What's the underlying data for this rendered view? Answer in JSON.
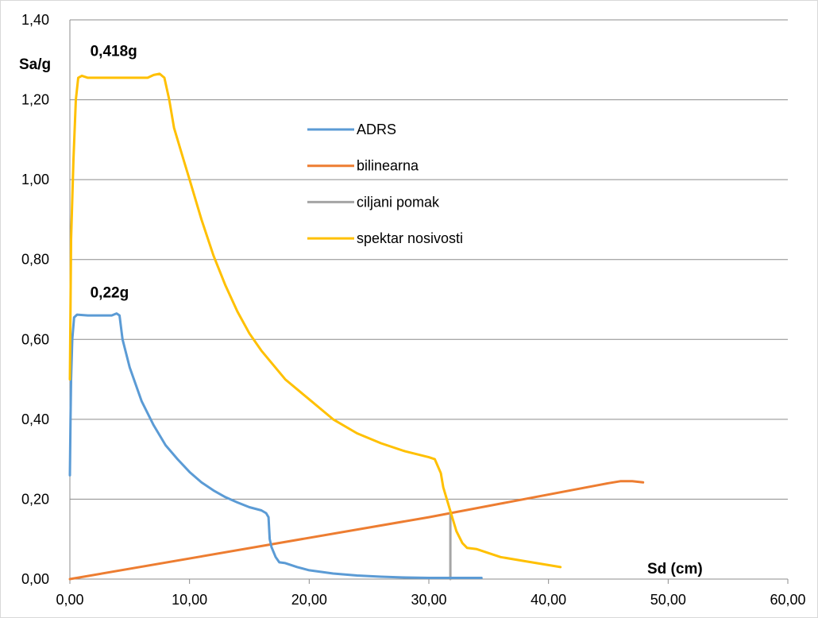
{
  "chart_data": {
    "type": "line",
    "xlabel": "Sd  (cm)",
    "ylabel": "Sa/g",
    "xlim": [
      0,
      60
    ],
    "ylim": [
      0,
      1.4
    ],
    "x_ticks": [
      "0,00",
      "10,00",
      "20,00",
      "30,00",
      "40,00",
      "50,00",
      "60,00"
    ],
    "y_ticks": [
      "0,00",
      "0,20",
      "0,40",
      "0,60",
      "0,80",
      "1,00",
      "1,20",
      "1,40"
    ],
    "grid": "horizontal",
    "legend_position": "center",
    "annotations": [
      {
        "text": "0,418g",
        "x": 1.7,
        "y": 1.31
      },
      {
        "text": "0,22g",
        "x": 1.7,
        "y": 0.705
      }
    ],
    "series": [
      {
        "name": "ADRS",
        "color": "#5B9BD5",
        "points": [
          [
            0.0,
            0.26
          ],
          [
            0.05,
            0.4
          ],
          [
            0.1,
            0.5
          ],
          [
            0.2,
            0.6
          ],
          [
            0.35,
            0.655
          ],
          [
            0.6,
            0.662
          ],
          [
            1.5,
            0.66
          ],
          [
            3.5,
            0.66
          ],
          [
            3.9,
            0.665
          ],
          [
            4.15,
            0.66
          ],
          [
            4.4,
            0.6
          ],
          [
            5.0,
            0.53
          ],
          [
            6.0,
            0.445
          ],
          [
            7.0,
            0.385
          ],
          [
            8.0,
            0.335
          ],
          [
            9.0,
            0.3
          ],
          [
            10.0,
            0.268
          ],
          [
            11.0,
            0.242
          ],
          [
            12.0,
            0.222
          ],
          [
            13.0,
            0.205
          ],
          [
            14.0,
            0.192
          ],
          [
            15.0,
            0.18
          ],
          [
            16.0,
            0.172
          ],
          [
            16.4,
            0.165
          ],
          [
            16.6,
            0.155
          ],
          [
            16.7,
            0.1
          ],
          [
            16.85,
            0.08
          ],
          [
            17.2,
            0.055
          ],
          [
            17.5,
            0.042
          ],
          [
            18.0,
            0.04
          ],
          [
            19.0,
            0.03
          ],
          [
            20.0,
            0.022
          ],
          [
            22.0,
            0.014
          ],
          [
            24.0,
            0.009
          ],
          [
            26.0,
            0.006
          ],
          [
            28.0,
            0.004
          ],
          [
            30.0,
            0.003
          ],
          [
            32.0,
            0.003
          ],
          [
            34.4,
            0.003
          ]
        ]
      },
      {
        "name": "bilinearna",
        "color": "#ED7D31",
        "points": [
          [
            0.0,
            0.0
          ],
          [
            30.0,
            0.155
          ],
          [
            45.0,
            0.24
          ],
          [
            46.0,
            0.245
          ],
          [
            47.0,
            0.245
          ],
          [
            47.9,
            0.242
          ]
        ]
      },
      {
        "name": "ciljani pomak",
        "color": "#A5A5A5",
        "points": [
          [
            31.8,
            0.0
          ],
          [
            31.8,
            0.17
          ]
        ]
      },
      {
        "name": "spektar nosivosti",
        "color": "#FFC000",
        "points": [
          [
            0.0,
            0.5
          ],
          [
            0.1,
            0.85
          ],
          [
            0.3,
            1.05
          ],
          [
            0.5,
            1.2
          ],
          [
            0.7,
            1.255
          ],
          [
            1.0,
            1.26
          ],
          [
            1.5,
            1.255
          ],
          [
            3.0,
            1.255
          ],
          [
            5.0,
            1.255
          ],
          [
            6.5,
            1.255
          ],
          [
            7.0,
            1.262
          ],
          [
            7.5,
            1.265
          ],
          [
            7.9,
            1.255
          ],
          [
            8.3,
            1.2
          ],
          [
            8.7,
            1.13
          ],
          [
            9.5,
            1.05
          ],
          [
            10.0,
            1.0
          ],
          [
            11.0,
            0.9
          ],
          [
            12.0,
            0.81
          ],
          [
            13.0,
            0.735
          ],
          [
            14.0,
            0.67
          ],
          [
            15.0,
            0.615
          ],
          [
            16.0,
            0.572
          ],
          [
            18.0,
            0.5
          ],
          [
            20.0,
            0.45
          ],
          [
            22.0,
            0.4
          ],
          [
            24.0,
            0.365
          ],
          [
            26.0,
            0.34
          ],
          [
            28.0,
            0.32
          ],
          [
            30.0,
            0.305
          ],
          [
            30.5,
            0.3
          ],
          [
            31.0,
            0.265
          ],
          [
            31.2,
            0.23
          ],
          [
            31.5,
            0.2
          ],
          [
            31.8,
            0.17
          ],
          [
            32.3,
            0.12
          ],
          [
            32.8,
            0.09
          ],
          [
            33.2,
            0.078
          ],
          [
            34.0,
            0.075
          ],
          [
            35.0,
            0.065
          ],
          [
            36.0,
            0.055
          ],
          [
            38.0,
            0.045
          ],
          [
            40.0,
            0.035
          ],
          [
            41.0,
            0.03
          ]
        ]
      }
    ]
  }
}
